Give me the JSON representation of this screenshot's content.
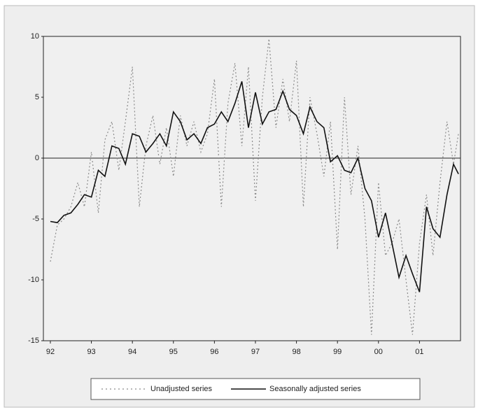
{
  "chart_data": {
    "type": "line",
    "x": [
      1992,
      1992.17,
      1992.33,
      1992.5,
      1992.67,
      1992.83,
      1993,
      1993.17,
      1993.33,
      1993.5,
      1993.67,
      1993.83,
      1994,
      1994.17,
      1994.33,
      1994.5,
      1994.67,
      1994.83,
      1995,
      1995.17,
      1995.33,
      1995.5,
      1995.67,
      1995.83,
      1996,
      1996.17,
      1996.33,
      1996.5,
      1996.67,
      1996.83,
      1997,
      1997.17,
      1997.33,
      1997.5,
      1997.67,
      1997.83,
      1998,
      1998.17,
      1998.33,
      1998.5,
      1998.67,
      1998.83,
      1999,
      1999.17,
      1999.33,
      1999.5,
      1999.67,
      1999.83,
      2000,
      2000.17,
      2000.33,
      2000.5,
      2000.67,
      2000.83,
      2001,
      2001.17,
      2001.33,
      2001.5,
      2001.67,
      2001.83,
      2001.95
    ],
    "series": [
      {
        "name": "Unadjusted series",
        "color": "#8a8a8a",
        "dash": true,
        "values": [
          -8.5,
          -5.5,
          -5.0,
          -4.0,
          -2.0,
          -4.0,
          0.5,
          -4.5,
          1.5,
          3.0,
          -1.0,
          3.0,
          7.5,
          -4.0,
          1.0,
          3.5,
          -0.5,
          2.5,
          -1.5,
          3.5,
          1.0,
          3.0,
          0.5,
          2.0,
          6.5,
          -4.0,
          4.5,
          7.8,
          1.0,
          7.5,
          -3.5,
          5.0,
          9.8,
          2.5,
          6.5,
          3.0,
          8.0,
          -4.0,
          5.0,
          2.0,
          -1.5,
          3.0,
          -7.5,
          5.0,
          -3.0,
          1.0,
          -5.0,
          -14.5,
          -2.0,
          -8.0,
          -7.0,
          -5.0,
          -10.0,
          -14.5,
          -7.0,
          -3.0,
          -8.0,
          -2.0,
          3.0,
          -0.5,
          2.0
        ]
      },
      {
        "name": "Seasonally adjusted series",
        "color": "#111111",
        "dash": false,
        "values": [
          -5.2,
          -5.3,
          -4.7,
          -4.5,
          -3.8,
          -3.0,
          -3.2,
          -1.0,
          -1.5,
          1.0,
          0.8,
          -0.5,
          2.0,
          1.8,
          0.5,
          1.2,
          2.0,
          1.0,
          3.8,
          3.0,
          1.5,
          2.0,
          1.2,
          2.5,
          2.8,
          3.8,
          3.0,
          4.5,
          6.3,
          2.5,
          5.4,
          2.8,
          3.8,
          4.0,
          5.5,
          4.0,
          3.5,
          2.0,
          4.2,
          3.0,
          2.5,
          -0.3,
          0.2,
          -1.0,
          -1.2,
          0.0,
          -2.5,
          -3.5,
          -6.5,
          -4.5,
          -7.0,
          -9.8,
          -8.0,
          -9.5,
          -11.0,
          -4.0,
          -5.8,
          -6.5,
          -3.0,
          -0.5,
          -1.3
        ]
      }
    ],
    "xlim": [
      1991.83,
      2002.0
    ],
    "xticks": [
      {
        "value": 1992,
        "label": "92"
      },
      {
        "value": 1993,
        "label": "93"
      },
      {
        "value": 1994,
        "label": "94"
      },
      {
        "value": 1995,
        "label": "95"
      },
      {
        "value": 1996,
        "label": "96"
      },
      {
        "value": 1997,
        "label": "97"
      },
      {
        "value": 1998,
        "label": "98"
      },
      {
        "value": 1999,
        "label": "99"
      },
      {
        "value": 2000,
        "label": "00"
      },
      {
        "value": 2001,
        "label": "01"
      }
    ],
    "ylim": [
      -15,
      10
    ],
    "yticks": [
      10,
      5,
      0,
      -5,
      -10,
      -15
    ],
    "zero_line": true,
    "legend": "bottom"
  }
}
